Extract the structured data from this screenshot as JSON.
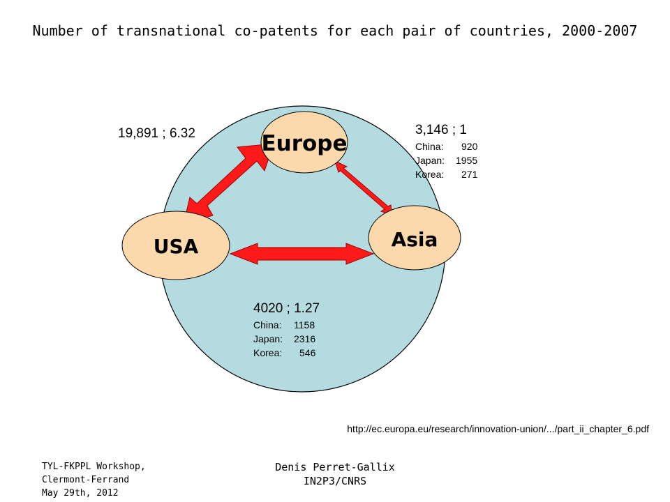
{
  "title": "Number of transnational co-patents for each pair of countries, 2000-2007",
  "nodes": {
    "europe": "Europe",
    "usa": "USA",
    "asia": "Asia"
  },
  "links": {
    "usa_europe": {
      "label": "19,891 ; 6.32",
      "total": 19891,
      "ratio": 6.32
    },
    "europe_asia": {
      "label": "3,146 ; 1",
      "total": 3146,
      "ratio": 1,
      "breakdown": [
        {
          "country": "China:",
          "value": "920"
        },
        {
          "country": "Japan:",
          "value": "1955"
        },
        {
          "country": "Korea:",
          "value": "271"
        }
      ]
    },
    "usa_asia": {
      "label": "4020 ; 1.27",
      "total": 4020,
      "ratio": 1.27,
      "breakdown": [
        {
          "country": "China:",
          "value": "1158"
        },
        {
          "country": "Japan:",
          "value": "2316"
        },
        {
          "country": "Korea:",
          "value": "546"
        }
      ]
    }
  },
  "source_url": "http://ec.europa.eu/research/innovation-union/.../part_ii_chapter_6.pdf",
  "footer": {
    "left": [
      "TYL-FKPPL Workshop,",
      "Clermont-Ferrand",
      "May 29th, 2012"
    ],
    "middle": [
      "Denis Perret-Gallix",
      "IN2P3/CNRS"
    ]
  },
  "colors": {
    "background_circle": "#b4dce0",
    "node_fill": "#fcd9ac",
    "arrow": "#ff1a1a",
    "arrow_edge": "#a00000"
  }
}
